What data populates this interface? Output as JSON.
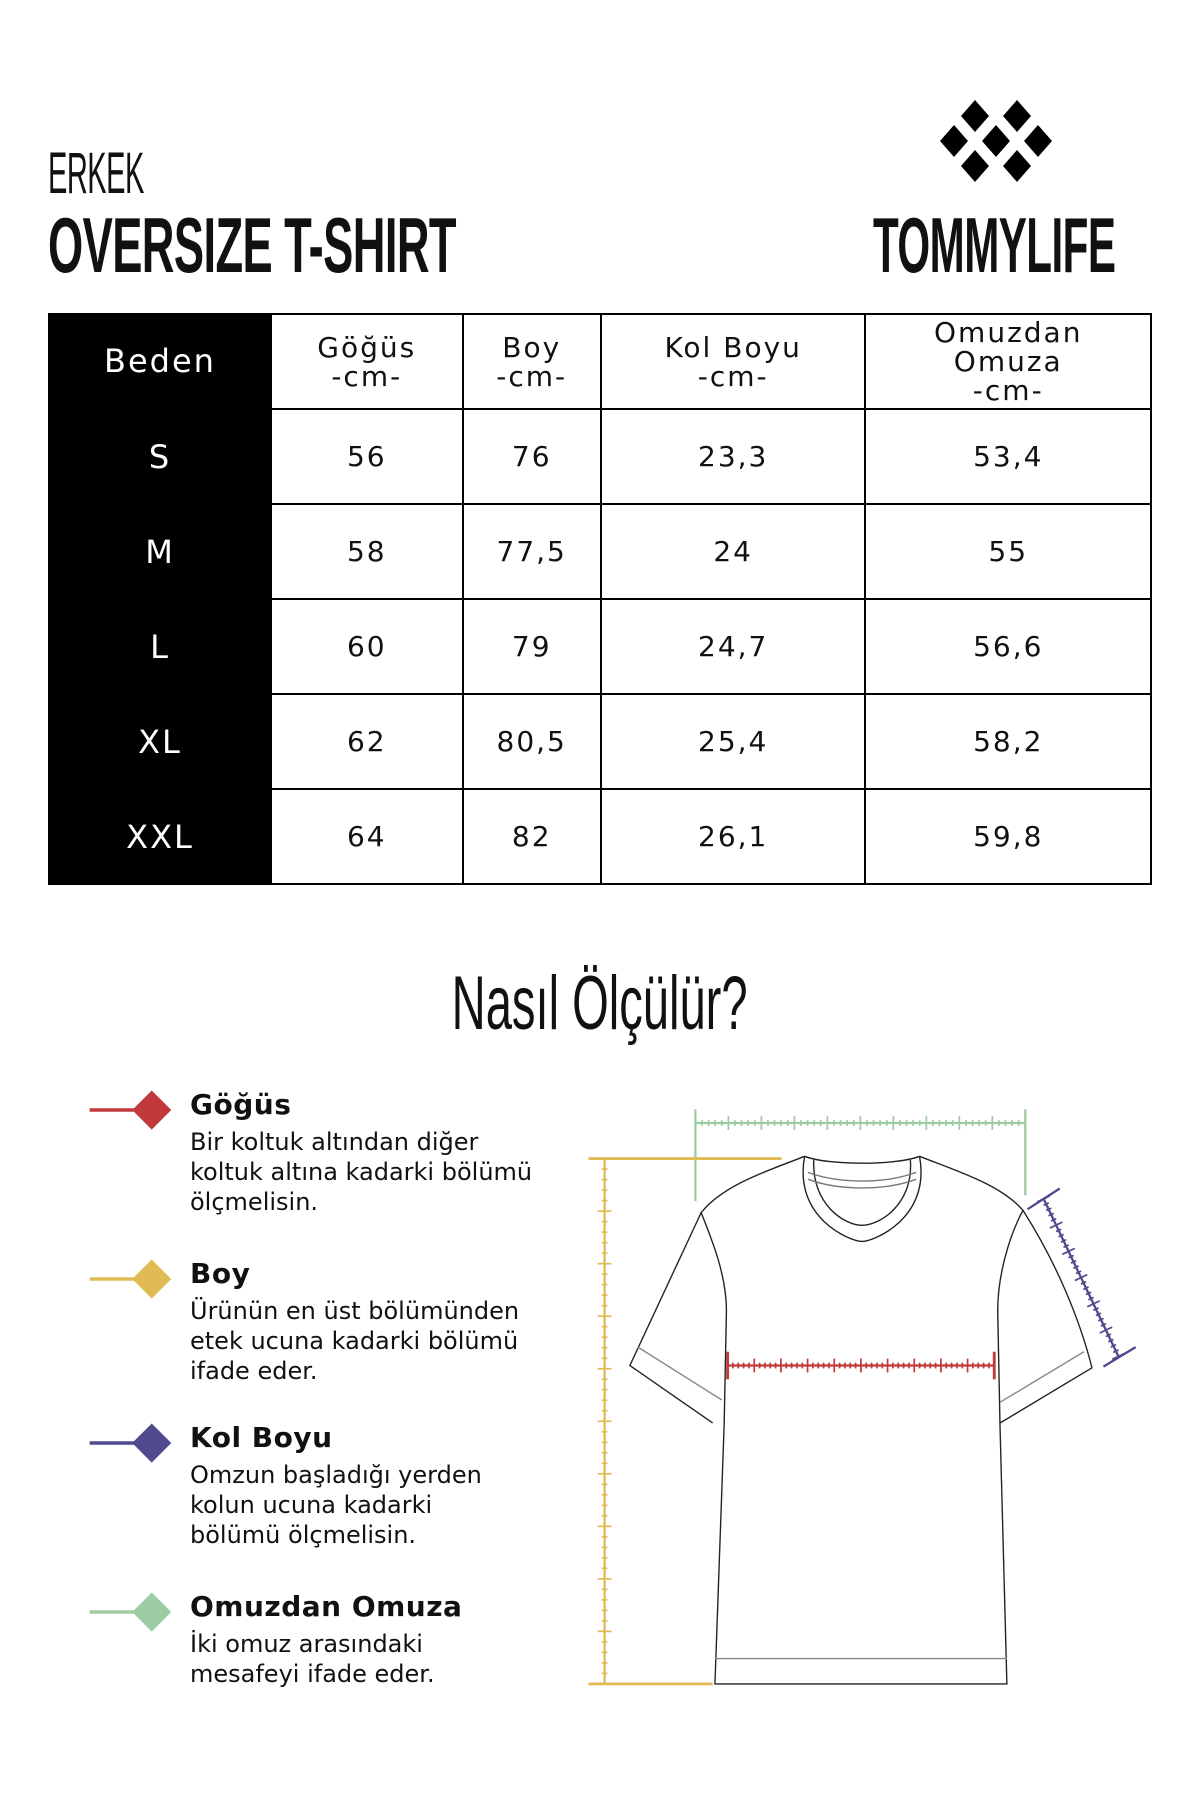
{
  "header": {
    "subtitle": "ERKEK",
    "title": "OVERSIZE T-SHIRT",
    "brand": "TOMMYLIFE"
  },
  "table": {
    "headers": [
      [
        "Beden"
      ],
      [
        "Göğüs",
        "-cm-"
      ],
      [
        "Boy",
        "-cm-"
      ],
      [
        "Kol Boyu",
        "-cm-"
      ],
      [
        "Omuzdan",
        "Omuza",
        "-cm-"
      ]
    ],
    "rows": [
      [
        "S",
        "56",
        "76",
        "23,3",
        "53,4"
      ],
      [
        "M",
        "58",
        "77,5",
        "24",
        "55"
      ],
      [
        "L",
        "60",
        "79",
        "24,7",
        "56,6"
      ],
      [
        "XL",
        "62",
        "80,5",
        "25,4",
        "58,2"
      ],
      [
        "XXL",
        "64",
        "82",
        "26,1",
        "59,8"
      ]
    ]
  },
  "howto": {
    "title": "Nasıl Ölçülür?"
  },
  "legend": [
    {
      "title": "Göğüs",
      "lines": [
        "Bir koltuk altından diğer",
        "koltuk altına kadarki bölümü",
        "ölçmelisin."
      ],
      "color": "#c0393b"
    },
    {
      "title": "Boy",
      "lines": [
        "Ürünün en üst bölümünden",
        "etek ucuna kadarki bölümü",
        "ifade eder."
      ],
      "color": "#e0bb55"
    },
    {
      "title": "Kol Boyu",
      "lines": [
        "Omzun başladığı yerden",
        "kolun ucuna kadarki",
        "bölümü ölçmelisin."
      ],
      "color": "#4f4a8e"
    },
    {
      "title": "Omuzdan Omuza",
      "lines": [
        "İki omuz arasındaki",
        "mesafeyi ifade eder."
      ],
      "color": "#9dcca2"
    }
  ]
}
